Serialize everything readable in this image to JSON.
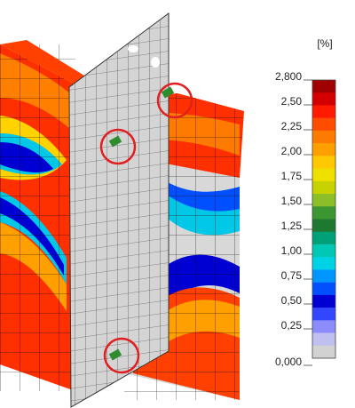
{
  "legend": {
    "title": "[%]",
    "labels": [
      "2,800",
      "2,50",
      "2,25",
      "2,00",
      "1,75",
      "1,50",
      "1,25",
      "1,00",
      "0,75",
      "0,50",
      "0,25",
      "0,000"
    ],
    "colors": [
      "#a00000",
      "#d40000",
      "#ff1a00",
      "#ff4d00",
      "#ff7a00",
      "#ffa000",
      "#ffc800",
      "#f0e000",
      "#c8d200",
      "#8cbe28",
      "#3c9632",
      "#1e7830",
      "#00a078",
      "#00c8b4",
      "#00d2e6",
      "#0096ff",
      "#0050ff",
      "#0000d2",
      "#3246ff",
      "#8c8cff",
      "#c0c0f0",
      "#d2d2d2"
    ]
  }
}
